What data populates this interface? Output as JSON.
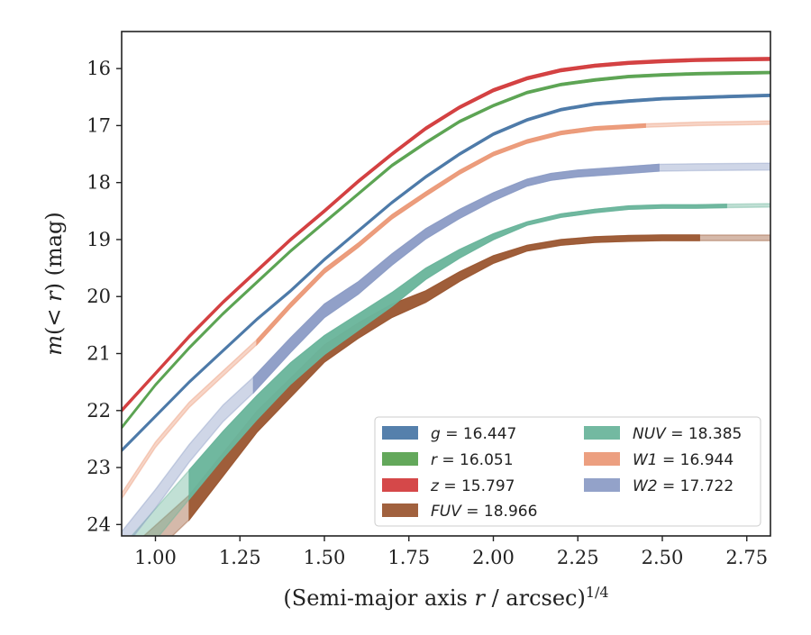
{
  "chart_data": {
    "type": "line",
    "xlabel": "(Semi-major axis r / arcsec)^{1/4}",
    "ylabel": "m(< r) (mag)",
    "xlim": [
      0.9,
      2.82
    ],
    "ylim": [
      24.2,
      15.35
    ],
    "y_inverted": true,
    "grid": false,
    "legend_position": "lower-right",
    "x_ticks": [
      "1.00",
      "1.25",
      "1.50",
      "1.75",
      "2.00",
      "2.25",
      "2.50",
      "2.75"
    ],
    "y_ticks": [
      "16",
      "17",
      "18",
      "19",
      "20",
      "21",
      "22",
      "23",
      "24"
    ],
    "series": [
      {
        "name": "g = 16.447",
        "legend_var": "g",
        "legend_val": "= 16.447",
        "color": "#4C79A8",
        "solid_until": 2.82,
        "x": [
          0.9,
          1.0,
          1.1,
          1.2,
          1.3,
          1.4,
          1.5,
          1.6,
          1.7,
          1.8,
          1.9,
          2.0,
          2.1,
          2.2,
          2.3,
          2.4,
          2.5,
          2.6,
          2.7,
          2.82
        ],
        "y": [
          22.7,
          22.1,
          21.5,
          20.95,
          20.4,
          19.9,
          19.35,
          18.85,
          18.35,
          17.9,
          17.5,
          17.15,
          16.9,
          16.72,
          16.62,
          16.57,
          16.53,
          16.51,
          16.49,
          16.47
        ],
        "band_start": 0.04,
        "band_end": 0.04
      },
      {
        "name": "r = 16.051",
        "legend_var": "r",
        "legend_val": "= 16.051",
        "color": "#5BA352",
        "solid_until": 2.82,
        "x": [
          0.9,
          1.0,
          1.1,
          1.2,
          1.3,
          1.4,
          1.5,
          1.6,
          1.7,
          1.8,
          1.9,
          2.0,
          2.1,
          2.2,
          2.3,
          2.4,
          2.5,
          2.6,
          2.7,
          2.82
        ],
        "y": [
          22.3,
          21.55,
          20.9,
          20.3,
          19.75,
          19.2,
          18.7,
          18.2,
          17.7,
          17.3,
          16.93,
          16.65,
          16.42,
          16.28,
          16.2,
          16.14,
          16.11,
          16.09,
          16.08,
          16.07
        ],
        "band_start": 0.04,
        "band_end": 0.04
      },
      {
        "name": "z = 15.797",
        "legend_var": "z",
        "legend_val": "= 15.797",
        "color": "#D33E3F",
        "solid_until": 2.82,
        "x": [
          0.9,
          1.0,
          1.1,
          1.2,
          1.3,
          1.4,
          1.5,
          1.6,
          1.7,
          1.8,
          1.9,
          2.0,
          2.1,
          2.2,
          2.3,
          2.4,
          2.5,
          2.6,
          2.7,
          2.82
        ],
        "y": [
          22.0,
          21.35,
          20.7,
          20.1,
          19.55,
          19.0,
          18.5,
          17.98,
          17.5,
          17.05,
          16.68,
          16.38,
          16.17,
          16.03,
          15.95,
          15.9,
          15.87,
          15.85,
          15.84,
          15.83
        ],
        "band_start": 0.05,
        "band_end": 0.05
      },
      {
        "name": "FUV = 18.966",
        "legend_var": "FUV",
        "legend_val": "= 18.966",
        "color": "#9C5934",
        "solid_until": 2.61,
        "x": [
          0.9,
          1.1,
          1.2,
          1.3,
          1.4,
          1.5,
          1.6,
          1.7,
          1.8,
          1.9,
          2.0,
          2.1,
          2.2,
          2.3,
          2.4,
          2.5,
          2.61,
          2.7,
          2.82
        ],
        "y": [
          24.8,
          23.7,
          22.95,
          22.2,
          21.6,
          21.0,
          20.6,
          20.25,
          20.0,
          19.65,
          19.35,
          19.15,
          19.05,
          19.0,
          18.98,
          18.97,
          18.97,
          18.97,
          18.97
        ],
        "band_start": 0.5,
        "band_end": 0.1
      },
      {
        "name": "NUV = 18.385",
        "legend_var": "NUV",
        "legend_val": "= 18.385",
        "color": "#6BB59C",
        "solid_until": 2.69,
        "x": [
          0.9,
          1.1,
          1.2,
          1.3,
          1.4,
          1.5,
          1.6,
          1.7,
          1.8,
          1.9,
          2.0,
          2.1,
          2.2,
          2.3,
          2.4,
          2.5,
          2.6,
          2.69,
          2.82
        ],
        "y": [
          24.7,
          23.3,
          22.6,
          21.95,
          21.35,
          20.85,
          20.45,
          20.05,
          19.6,
          19.25,
          18.95,
          18.72,
          18.58,
          18.5,
          18.44,
          18.42,
          18.42,
          18.41,
          18.4
        ],
        "band_start": 0.6,
        "band_end": 0.06
      },
      {
        "name": "W1 = 16.944",
        "legend_var": "W1",
        "legend_val": "= 16.944",
        "color": "#EB9A79",
        "solid_until": 2.45,
        "x": [
          0.9,
          1.0,
          1.1,
          1.2,
          1.3,
          1.4,
          1.5,
          1.6,
          1.7,
          1.8,
          1.9,
          2.0,
          2.1,
          2.2,
          2.3,
          2.45,
          2.6,
          2.82
        ],
        "y": [
          23.5,
          22.6,
          21.9,
          21.35,
          20.8,
          20.15,
          19.55,
          19.1,
          18.6,
          18.2,
          17.82,
          17.5,
          17.28,
          17.13,
          17.05,
          17.0,
          16.97,
          16.95
        ],
        "band_start": 0.1,
        "band_end": 0.06
      },
      {
        "name": "W2 = 17.722",
        "legend_var": "W2",
        "legend_val": "= 17.722",
        "color": "#8D9DC6",
        "solid_until": 2.49,
        "x": [
          0.9,
          1.0,
          1.1,
          1.2,
          1.29,
          1.4,
          1.5,
          1.6,
          1.7,
          1.8,
          1.9,
          2.0,
          2.1,
          2.17,
          2.25,
          2.35,
          2.49,
          2.6,
          2.82
        ],
        "y": [
          24.3,
          23.55,
          22.75,
          22.05,
          21.55,
          20.85,
          20.25,
          19.85,
          19.35,
          18.9,
          18.55,
          18.25,
          18.0,
          17.9,
          17.84,
          17.8,
          17.74,
          17.73,
          17.72
        ],
        "band_start": 0.35,
        "band_end": 0.12
      }
    ]
  }
}
